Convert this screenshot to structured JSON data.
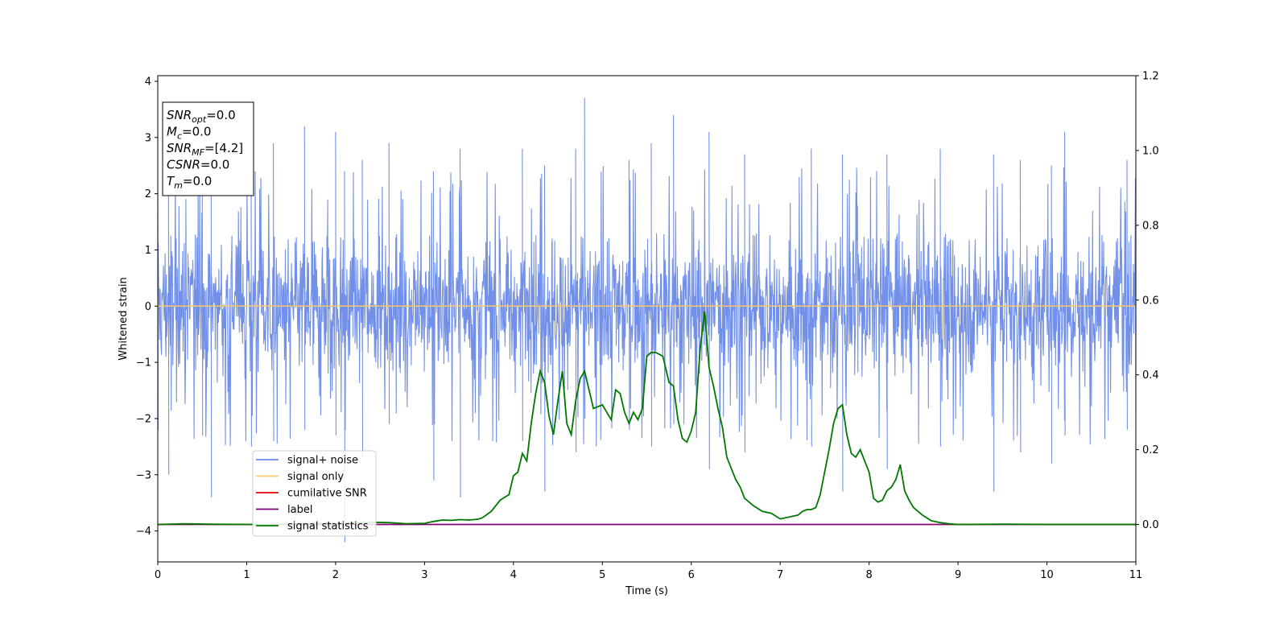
{
  "chart_data": {
    "type": "line",
    "title": "",
    "xlabel": "Time (s)",
    "ylabel": "Whitened strain",
    "y2label": "",
    "xlim": [
      0,
      11
    ],
    "ylim": [
      -4.55,
      4.1
    ],
    "y2lim": [
      -0.1,
      1.2
    ],
    "x_ticks": [
      "0",
      "1",
      "2",
      "3",
      "4",
      "5",
      "6",
      "7",
      "8",
      "9",
      "10",
      "11"
    ],
    "y_ticks": [
      "−4",
      "−3",
      "−2",
      "−1",
      "0",
      "1",
      "2",
      "3",
      "4"
    ],
    "y2_ticks": [
      "0.0",
      "0.2",
      "0.4",
      "0.6",
      "0.8",
      "1.0",
      "1.2"
    ],
    "legend_position": "lower-left",
    "legend": [
      {
        "name": "signal+ noise",
        "color": "#6a8ae6"
      },
      {
        "name": "signal only",
        "color": "#ffc76b"
      },
      {
        "name": "cumilative SNR",
        "color": "#e00000"
      },
      {
        "name": "label",
        "color": "#800080"
      },
      {
        "name": "signal statistics",
        "color": "#007700"
      }
    ],
    "annotation": {
      "lines": [
        {
          "main": "SNR",
          "sub": "opt",
          "rest": "=0.0"
        },
        {
          "main": "M",
          "sub": "c",
          "rest": "=0.0"
        },
        {
          "main": "SNR",
          "sub": "MF",
          "rest": "=[4.2]"
        },
        {
          "main": "CSNR",
          "sub": "",
          "rest": "=0.0"
        },
        {
          "main": "T",
          "sub": "m",
          "rest": "=0.0"
        }
      ]
    },
    "series": [
      {
        "name": "signal+ noise",
        "axis": "left",
        "style": "noise",
        "color": "#6a8ae6",
        "band": {
          "typical_min": -1.6,
          "typical_max": 1.3
        },
        "spikes": [
          [
            0.0,
            2.0,
            -2.2
          ],
          [
            0.12,
            2.6,
            -3.0
          ],
          [
            0.5,
            2.9,
            -2.3
          ],
          [
            0.6,
            2.2,
            -3.4
          ],
          [
            1.05,
            2.5,
            -2.5
          ],
          [
            1.3,
            2.9,
            -2.4
          ],
          [
            1.65,
            3.2,
            -2.2
          ],
          [
            2.0,
            3.1,
            -2.3
          ],
          [
            2.1,
            2.4,
            -4.2
          ],
          [
            2.3,
            2.6,
            -2.7
          ],
          [
            2.6,
            2.9,
            -2.1
          ],
          [
            3.1,
            2.4,
            -3.1
          ],
          [
            3.4,
            2.8,
            -3.4
          ],
          [
            4.1,
            2.8,
            -2.4
          ],
          [
            4.35,
            2.5,
            -3.3
          ],
          [
            4.7,
            2.8,
            -2.6
          ],
          [
            4.8,
            3.7,
            -2.0
          ],
          [
            5.3,
            2.6,
            -2.2
          ],
          [
            5.55,
            2.9,
            -2.5
          ],
          [
            5.8,
            3.4,
            -2.1
          ],
          [
            6.2,
            3.1,
            -2.9
          ],
          [
            6.6,
            2.7,
            -2.6
          ],
          [
            7.35,
            2.8,
            -2.5
          ],
          [
            7.7,
            2.7,
            -3.3
          ],
          [
            8.2,
            2.7,
            -2.9
          ],
          [
            8.8,
            2.8,
            -2.5
          ],
          [
            9.4,
            2.7,
            -3.3
          ],
          [
            9.7,
            2.6,
            -2.6
          ],
          [
            10.05,
            2.5,
            -2.8
          ],
          [
            10.2,
            3.1,
            -2.3
          ],
          [
            10.9,
            2.6,
            -2.2
          ]
        ]
      },
      {
        "name": "signal only",
        "axis": "left",
        "color": "#ffc76b",
        "x": [
          0,
          11
        ],
        "y": [
          0,
          0
        ]
      },
      {
        "name": "cumilative SNR",
        "axis": "right",
        "color": "#e00000",
        "x": [
          0,
          11
        ],
        "y": [
          0,
          0
        ]
      },
      {
        "name": "label",
        "axis": "right",
        "color": "#800080",
        "x": [
          0,
          11
        ],
        "y": [
          0,
          0
        ]
      },
      {
        "name": "signal statistics",
        "axis": "right",
        "color": "#007700",
        "x": [
          0.0,
          0.3,
          0.6,
          1.0,
          1.5,
          2.0,
          2.4,
          2.6,
          2.8,
          3.0,
          3.1,
          3.2,
          3.3,
          3.4,
          3.5,
          3.6,
          3.65,
          3.75,
          3.85,
          3.95,
          4.0,
          4.05,
          4.1,
          4.15,
          4.2,
          4.25,
          4.3,
          4.35,
          4.4,
          4.45,
          4.5,
          4.55,
          4.6,
          4.65,
          4.7,
          4.75,
          4.8,
          4.85,
          4.9,
          5.0,
          5.1,
          5.15,
          5.2,
          5.25,
          5.3,
          5.35,
          5.4,
          5.45,
          5.5,
          5.55,
          5.6,
          5.68,
          5.75,
          5.8,
          5.85,
          5.9,
          5.95,
          6.0,
          6.05,
          6.1,
          6.15,
          6.2,
          6.25,
          6.3,
          6.35,
          6.4,
          6.45,
          6.5,
          6.55,
          6.6,
          6.7,
          6.8,
          6.9,
          7.0,
          7.1,
          7.2,
          7.25,
          7.3,
          7.35,
          7.4,
          7.45,
          7.5,
          7.55,
          7.6,
          7.65,
          7.7,
          7.75,
          7.8,
          7.85,
          7.9,
          8.0,
          8.05,
          8.1,
          8.15,
          8.2,
          8.25,
          8.3,
          8.35,
          8.4,
          8.45,
          8.5,
          8.6,
          8.7,
          8.8,
          8.9,
          9.0,
          9.5,
          10.0,
          10.5,
          11.0
        ],
        "y": [
          0.0,
          0.002,
          0.001,
          0.0,
          0.001,
          0.003,
          0.006,
          0.005,
          0.002,
          0.003,
          0.008,
          0.012,
          0.011,
          0.013,
          0.012,
          0.014,
          0.018,
          0.035,
          0.065,
          0.08,
          0.13,
          0.14,
          0.19,
          0.17,
          0.27,
          0.35,
          0.41,
          0.38,
          0.29,
          0.24,
          0.33,
          0.41,
          0.27,
          0.24,
          0.33,
          0.39,
          0.41,
          0.36,
          0.31,
          0.32,
          0.28,
          0.36,
          0.35,
          0.3,
          0.27,
          0.3,
          0.28,
          0.31,
          0.45,
          0.46,
          0.46,
          0.45,
          0.38,
          0.37,
          0.28,
          0.23,
          0.22,
          0.25,
          0.3,
          0.47,
          0.57,
          0.42,
          0.37,
          0.31,
          0.26,
          0.18,
          0.15,
          0.12,
          0.1,
          0.07,
          0.05,
          0.035,
          0.03,
          0.015,
          0.02,
          0.025,
          0.035,
          0.04,
          0.04,
          0.045,
          0.08,
          0.14,
          0.2,
          0.27,
          0.31,
          0.32,
          0.24,
          0.19,
          0.18,
          0.2,
          0.14,
          0.07,
          0.06,
          0.065,
          0.09,
          0.1,
          0.12,
          0.16,
          0.09,
          0.065,
          0.045,
          0.025,
          0.01,
          0.005,
          0.002,
          0.0,
          0.001,
          0.0,
          0.0,
          0.0
        ]
      }
    ]
  }
}
